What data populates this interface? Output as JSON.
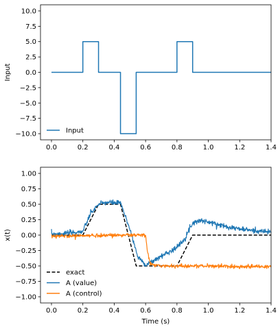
{
  "chart_data": [
    {
      "type": "line",
      "ylabel": "Input",
      "xlabel": "",
      "xlim": [
        -0.07,
        1.4
      ],
      "ylim": [
        -11.0,
        11.0
      ],
      "xticks": [
        0.0,
        0.2,
        0.4,
        0.6,
        0.8,
        1.0,
        1.2,
        1.4
      ],
      "xtick_labels": [
        "0.0",
        "0.2",
        "0.4",
        "0.6",
        "0.8",
        "1.0",
        "1.2",
        "1.4"
      ],
      "yticks": [
        10.0,
        7.5,
        5.0,
        2.5,
        0.0,
        -2.5,
        -5.0,
        -7.5,
        -10.0
      ],
      "ytick_labels": [
        "10.0",
        "7.5",
        "5.0",
        "2.5",
        "0.0",
        "−2.5",
        "−5.0",
        "−7.5",
        "−10.0"
      ],
      "legend_position": "lower-left",
      "series": [
        {
          "name": "Input",
          "color": "#1f77b4",
          "style": "solid",
          "x": [
            0.0,
            0.2,
            0.2,
            0.3,
            0.3,
            0.44,
            0.44,
            0.54,
            0.54,
            0.8,
            0.8,
            0.9,
            0.9,
            1.4
          ],
          "y": [
            0,
            0,
            5,
            5,
            0,
            0,
            -10,
            -10,
            0,
            0,
            5,
            5,
            0,
            0
          ]
        }
      ]
    },
    {
      "type": "line",
      "ylabel": "x(t)",
      "xlabel": "Time (s)",
      "xlim": [
        -0.07,
        1.4
      ],
      "ylim": [
        -1.1,
        1.1
      ],
      "xticks": [
        0.0,
        0.2,
        0.4,
        0.6,
        0.8,
        1.0,
        1.2,
        1.4
      ],
      "xtick_labels": [
        "0.0",
        "0.2",
        "0.4",
        "0.6",
        "0.8",
        "1.0",
        "1.2",
        "1.4"
      ],
      "yticks": [
        1.0,
        0.75,
        0.5,
        0.25,
        0.0,
        -0.25,
        -0.5,
        -0.75,
        -1.0
      ],
      "ytick_labels": [
        "1.00",
        "0.75",
        "0.50",
        "0.25",
        "0.00",
        "−0.25",
        "−0.50",
        "−0.75",
        "−1.00"
      ],
      "legend_position": "lower-left",
      "series": [
        {
          "name": "exact",
          "color": "#000000",
          "style": "dashed",
          "x": [
            0.0,
            0.2,
            0.3,
            0.44,
            0.54,
            0.8,
            0.9,
            1.4
          ],
          "y": [
            0.0,
            0.0,
            0.5,
            0.5,
            -0.5,
            -0.5,
            0.0,
            0.0
          ]
        },
        {
          "name": "A (value)",
          "color": "#1f77b4",
          "style": "solid",
          "noise": 0.02,
          "x": [
            0.0,
            0.1,
            0.2,
            0.25,
            0.3,
            0.35,
            0.44,
            0.5,
            0.55,
            0.6,
            0.63,
            0.7,
            0.8,
            0.85,
            0.9,
            0.95,
            1.0,
            1.1,
            1.2,
            1.3,
            1.4
          ],
          "y": [
            0.02,
            0.03,
            0.06,
            0.35,
            0.5,
            0.53,
            0.52,
            0.1,
            -0.35,
            -0.48,
            -0.45,
            -0.34,
            -0.2,
            -0.05,
            0.2,
            0.24,
            0.21,
            0.15,
            0.1,
            0.07,
            0.05
          ]
        },
        {
          "name": "A (control)",
          "color": "#ff7f0e",
          "style": "solid",
          "noise": 0.015,
          "x": [
            0.0,
            0.2,
            0.4,
            0.55,
            0.6,
            0.61,
            0.63,
            0.7,
            0.8,
            1.0,
            1.2,
            1.4
          ],
          "y": [
            -0.02,
            -0.01,
            0.0,
            0.0,
            0.0,
            -0.25,
            -0.47,
            -0.5,
            -0.5,
            -0.5,
            -0.51,
            -0.51
          ]
        }
      ]
    }
  ]
}
